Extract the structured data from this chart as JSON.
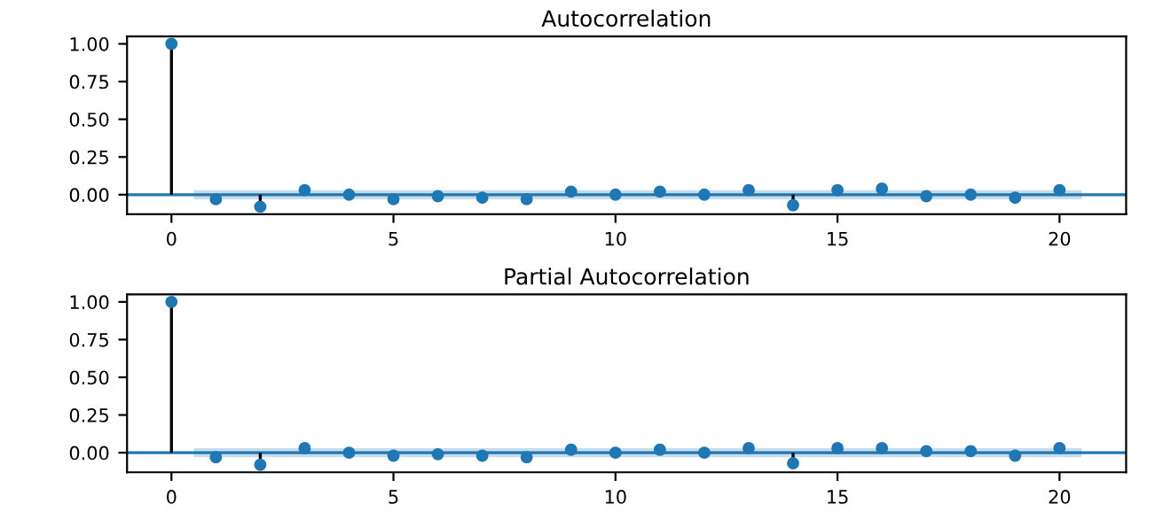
{
  "chart_data": [
    {
      "type": "lollipop",
      "title": "Autocorrelation",
      "x": [
        0,
        1,
        2,
        3,
        4,
        5,
        6,
        7,
        8,
        9,
        10,
        11,
        12,
        13,
        14,
        15,
        16,
        17,
        18,
        19,
        20
      ],
      "series": [
        {
          "color": "#1f77b4",
          "values": [
            1,
            -0.03,
            -0.08,
            0.03,
            0,
            -0.03,
            -0.01,
            -0.02,
            -0.03,
            0.02,
            0,
            0.02,
            0,
            0.03,
            -0.07,
            0.03,
            0.04,
            -0.01,
            0,
            -0.02,
            0.03
          ]
        }
      ],
      "xlim": [
        -1,
        21.5
      ],
      "xticks": [
        0,
        5,
        10,
        15,
        20
      ],
      "ylim": [
        -0.13,
        1.05
      ],
      "yticks": [
        {
          "value": 0,
          "label": "0.00"
        },
        {
          "value": 0.25,
          "label": "0.25"
        },
        {
          "value": 0.5,
          "label": "0.50"
        },
        {
          "value": 0.75,
          "label": "0.75"
        },
        {
          "value": 1,
          "label": "1.00"
        }
      ],
      "ref_lines": [
        {
          "axis": "y",
          "value": 0,
          "color": "#1f77b4"
        }
      ],
      "bands": [
        {
          "axis": "y",
          "from": -0.03,
          "to": 0.03,
          "color": "#1f77b4"
        }
      ],
      "marker": "circle",
      "grid": false,
      "legend": false
    },
    {
      "type": "lollipop",
      "title": "Partial Autocorrelation",
      "x": [
        0,
        1,
        2,
        3,
        4,
        5,
        6,
        7,
        8,
        9,
        10,
        11,
        12,
        13,
        14,
        15,
        16,
        17,
        18,
        19,
        20
      ],
      "series": [
        {
          "color": "#1f77b4",
          "values": [
            1,
            -0.03,
            -0.08,
            0.03,
            0,
            -0.02,
            -0.01,
            -0.02,
            -0.03,
            0.02,
            0,
            0.02,
            0,
            0.03,
            -0.07,
            0.03,
            0.03,
            0.01,
            0.01,
            -0.02,
            0.03
          ]
        }
      ],
      "xlim": [
        -1,
        21.5
      ],
      "xticks": [
        0,
        5,
        10,
        15,
        20
      ],
      "ylim": [
        -0.13,
        1.05
      ],
      "yticks": [
        {
          "value": 0,
          "label": "0.00"
        },
        {
          "value": 0.25,
          "label": "0.25"
        },
        {
          "value": 0.5,
          "label": "0.50"
        },
        {
          "value": 0.75,
          "label": "0.75"
        },
        {
          "value": 1,
          "label": "1.00"
        }
      ],
      "ref_lines": [
        {
          "axis": "y",
          "value": 0,
          "color": "#1f77b4"
        }
      ],
      "bands": [
        {
          "axis": "y",
          "from": -0.03,
          "to": 0.03,
          "color": "#1f77b4"
        }
      ],
      "marker": "circle",
      "grid": false,
      "legend": false
    }
  ]
}
